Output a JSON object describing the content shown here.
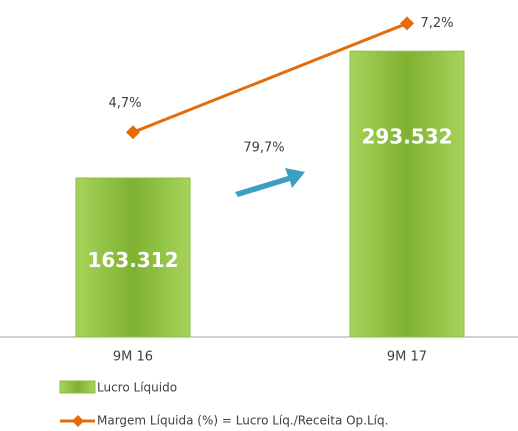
{
  "chart_data": {
    "type": "bar",
    "categories": [
      "9M 16",
      "9M 17"
    ],
    "series": [
      {
        "name": "Lucro Líquido",
        "type": "bar",
        "color": "#8cbf3f",
        "values": [
          163312,
          293532
        ],
        "value_labels": [
          "163.312",
          "293.532"
        ]
      },
      {
        "name": "Margem Líquida (%) = Lucro Líq./Receita Op.Líq.",
        "type": "line",
        "axis": "y2",
        "color": "#e46c0a",
        "values": [
          4.7,
          7.2
        ],
        "value_labels": [
          "4,7%",
          "7,2%"
        ]
      }
    ],
    "ylim": [
      0,
      340000
    ],
    "y2lim": [
      0,
      7.6
    ],
    "annotations": [
      "79,7%"
    ]
  }
}
